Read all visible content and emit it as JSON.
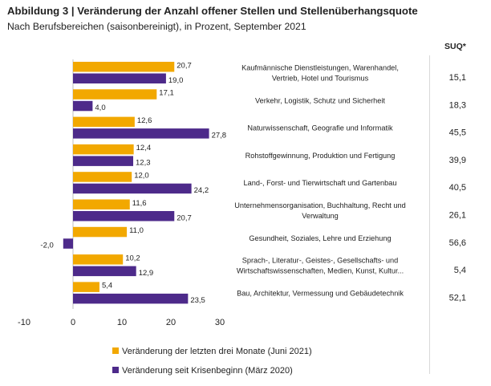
{
  "title": "Abbildung 3 | Veränderung der Anzahl offener Stellen und Stellenüberhangsquote",
  "subtitle": "Nach Berufsbereichen (saisonbereinigt), in Prozent, September 2021",
  "suq_header": "SUQ*",
  "colors": {
    "series1": "#f2a800",
    "series2": "#4d2a8a"
  },
  "legend": [
    {
      "label": "Veränderung der letzten drei Monate (Juni 2021)"
    },
    {
      "label": "Veränderung seit Krisenbeginn (März 2020)"
    }
  ],
  "chart_data": {
    "type": "bar",
    "orientation": "horizontal",
    "xlim": [
      -10,
      30
    ],
    "x_ticks": [
      "-10",
      "0",
      "10",
      "20",
      "30"
    ],
    "categories": [
      [
        "Kaufmännische Dienstleistungen, Warenhandel,",
        "Vertrieb, Hotel und Tourismus"
      ],
      [
        "Verkehr, Logistik, Schutz und Sicherheit"
      ],
      [
        "Naturwissenschaft, Geografie und Informatik"
      ],
      [
        "Rohstoffgewinnung, Produktion und Fertigung"
      ],
      [
        "Land-, Forst- und Tierwirtschaft und Gartenbau"
      ],
      [
        "Unternehmensorganisation, Buchhaltung, Recht und",
        "Verwaltung"
      ],
      [
        "Gesundheit, Soziales, Lehre und Erziehung"
      ],
      [
        "Sprach-, Literatur-, Geistes-, Gesellschafts- und",
        "Wirtschaftswissenschaften, Medien, Kunst, Kultur..."
      ],
      [
        "Bau, Architektur, Vermessung und Gebäudetechnik"
      ]
    ],
    "series": [
      {
        "name": "Veränderung der letzten drei Monate (Juni 2021)",
        "values": [
          20.7,
          17.1,
          12.6,
          12.4,
          12.0,
          11.6,
          11.0,
          10.2,
          5.4
        ],
        "labels": [
          "20,7",
          "17,1",
          "12,6",
          "12,4",
          "12,0",
          "11,6",
          "11,0",
          "10,2",
          "5,4"
        ]
      },
      {
        "name": "Veränderung seit Krisenbeginn (März 2020)",
        "values": [
          19.0,
          4.0,
          27.8,
          12.3,
          24.2,
          20.7,
          -2.0,
          12.9,
          23.5
        ],
        "labels": [
          "19,0",
          "4,0",
          "27,8",
          "12,3",
          "24,2",
          "20,7",
          "-2,0",
          "12,9",
          "23,5"
        ]
      }
    ],
    "suq": [
      "15,1",
      "18,3",
      "45,5",
      "39,9",
      "40,5",
      "26,1",
      "56,6",
      "5,4",
      "52,1"
    ]
  }
}
